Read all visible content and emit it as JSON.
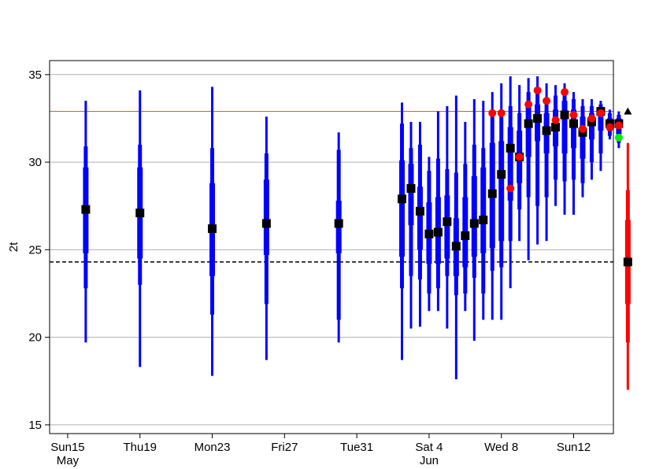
{
  "chart_data": {
    "type": "boxplot",
    "ylabel": "2t",
    "ylim": [
      14.5,
      35.8
    ],
    "y_ticks": [
      15,
      20,
      25,
      30,
      35
    ],
    "x_ticks": [
      {
        "x": 0,
        "label": "Sun15",
        "sublabel": "May",
        "color": "#ff0000"
      },
      {
        "x": 4,
        "label": "Thu19",
        "sublabel": "",
        "color": "#000000"
      },
      {
        "x": 8,
        "label": "Mon23",
        "sublabel": "",
        "color": "#000000"
      },
      {
        "x": 12,
        "label": "Fri27",
        "sublabel": "",
        "color": "#000000"
      },
      {
        "x": 16,
        "label": "Tue31",
        "sublabel": "",
        "color": "#000000"
      },
      {
        "x": 20,
        "label": "Sat 4",
        "sublabel": "Jun",
        "color": "#000000"
      },
      {
        "x": 24,
        "label": "Wed 8",
        "sublabel": "",
        "color": "#000000"
      },
      {
        "x": 28,
        "label": "Sun12",
        "sublabel": "",
        "color": "#ff0000"
      }
    ],
    "xlim": [
      -1,
      30.2
    ],
    "grid": true,
    "reference_lines": [
      {
        "y": 32.9,
        "color": "#ff4444",
        "style": "solid"
      },
      {
        "y": 24.3,
        "color": "#000000",
        "style": "dashed"
      }
    ],
    "boxes": [
      {
        "x": 1.0,
        "min": 19.7,
        "p10": 22.8,
        "p25": 24.8,
        "median": 27.3,
        "p75": 29.7,
        "p90": 30.9,
        "max": 33.5
      },
      {
        "x": 4.0,
        "min": 18.3,
        "p10": 23.0,
        "p25": 24.5,
        "median": 27.1,
        "p75": 29.7,
        "p90": 31.0,
        "max": 34.1
      },
      {
        "x": 8.0,
        "min": 17.8,
        "p10": 21.3,
        "p25": 23.5,
        "median": 26.2,
        "p75": 28.8,
        "p90": 30.8,
        "max": 34.3
      },
      {
        "x": 11.0,
        "min": 18.7,
        "p10": 21.9,
        "p25": 24.7,
        "median": 26.5,
        "p75": 29.0,
        "p90": 30.5,
        "max": 32.6
      },
      {
        "x": 15.0,
        "min": 19.7,
        "p10": 21.0,
        "p25": 24.8,
        "median": 26.5,
        "p75": 27.8,
        "p90": 30.7,
        "max": 31.7
      },
      {
        "x": 18.5,
        "min": 18.7,
        "p10": 22.8,
        "p25": 24.6,
        "median": 27.9,
        "p75": 30.1,
        "p90": 32.2,
        "max": 33.4
      },
      {
        "x": 19.0,
        "min": 20.5,
        "p10": 23.5,
        "p25": 26.4,
        "median": 28.5,
        "p75": 29.9,
        "p90": 30.8,
        "max": 32.3
      },
      {
        "x": 19.5,
        "min": 20.6,
        "p10": 23.3,
        "p25": 25.0,
        "median": 27.2,
        "p75": 28.6,
        "p90": 31.0,
        "max": 32.3
      },
      {
        "x": 20.0,
        "min": 21.5,
        "p10": 22.5,
        "p25": 24.2,
        "median": 25.9,
        "p75": 27.7,
        "p90": 29.5,
        "max": 30.3
      },
      {
        "x": 20.5,
        "min": 21.5,
        "p10": 22.8,
        "p25": 24.2,
        "median": 26.0,
        "p75": 28.0,
        "p90": 30.2,
        "max": 32.9
      },
      {
        "x": 21.0,
        "min": 20.5,
        "p10": 23.5,
        "p25": 24.5,
        "median": 26.6,
        "p75": 28.1,
        "p90": 29.6,
        "max": 33.2
      },
      {
        "x": 21.5,
        "min": 17.6,
        "p10": 22.4,
        "p25": 23.5,
        "median": 25.2,
        "p75": 26.8,
        "p90": 29.4,
        "max": 33.8
      },
      {
        "x": 22.0,
        "min": 21.5,
        "p10": 22.5,
        "p25": 24.0,
        "median": 25.8,
        "p75": 28.0,
        "p90": 29.9,
        "max": 32.3
      },
      {
        "x": 22.5,
        "min": 19.8,
        "p10": 23.4,
        "p25": 24.6,
        "median": 26.5,
        "p75": 29.2,
        "p90": 31.0,
        "max": 33.6
      },
      {
        "x": 23.0,
        "min": 21.0,
        "p10": 22.5,
        "p25": 24.8,
        "median": 26.7,
        "p75": 29.7,
        "p90": 30.8,
        "max": 33.5
      },
      {
        "x": 23.5,
        "min": 21.0,
        "p10": 23.8,
        "p25": 25.1,
        "median": 28.2,
        "p75": 31.1,
        "p90": 32.6,
        "max": 34.0
      },
      {
        "x": 24.0,
        "min": 21.0,
        "p10": 24.0,
        "p25": 25.5,
        "median": 29.3,
        "p75": 31.2,
        "p90": 33.0,
        "max": 34.5
      },
      {
        "x": 24.5,
        "min": 22.8,
        "p10": 25.5,
        "p25": 27.8,
        "median": 30.8,
        "p75": 32.0,
        "p90": 33.2,
        "max": 34.9
      },
      {
        "x": 25.0,
        "min": 25.5,
        "p10": 27.3,
        "p25": 28.8,
        "median": 30.3,
        "p75": 31.8,
        "p90": 32.8,
        "max": 34.4
      },
      {
        "x": 25.5,
        "min": 24.4,
        "p10": 28.0,
        "p25": 30.3,
        "median": 32.2,
        "p75": 33.3,
        "p90": 34.0,
        "max": 34.8
      },
      {
        "x": 26.0,
        "min": 25.3,
        "p10": 27.5,
        "p25": 31.2,
        "median": 32.5,
        "p75": 33.3,
        "p90": 34.0,
        "max": 34.9
      },
      {
        "x": 26.5,
        "min": 25.5,
        "p10": 28.0,
        "p25": 30.5,
        "median": 31.8,
        "p75": 32.8,
        "p90": 33.6,
        "max": 34.5
      },
      {
        "x": 27.0,
        "min": 27.5,
        "p10": 29.0,
        "p25": 30.9,
        "median": 32.0,
        "p75": 33.0,
        "p90": 33.8,
        "max": 34.4
      },
      {
        "x": 27.5,
        "min": 27.0,
        "p10": 28.9,
        "p25": 30.5,
        "median": 32.7,
        "p75": 33.5,
        "p90": 34.0,
        "max": 34.5
      },
      {
        "x": 28.0,
        "min": 27.0,
        "p10": 29.0,
        "p25": 30.8,
        "median": 32.2,
        "p75": 33.0,
        "p90": 33.6,
        "max": 34.0
      },
      {
        "x": 28.5,
        "min": 28.0,
        "p10": 28.8,
        "p25": 30.2,
        "median": 31.7,
        "p75": 32.6,
        "p90": 33.2,
        "max": 33.6
      },
      {
        "x": 29.0,
        "min": 29.0,
        "p10": 30.0,
        "p25": 31.3,
        "median": 32.3,
        "p75": 32.8,
        "p90": 33.2,
        "max": 33.6
      },
      {
        "x": 29.5,
        "min": 29.5,
        "p10": 30.5,
        "p25": 31.8,
        "median": 32.9,
        "p75": 33.1,
        "p90": 33.3,
        "max": 33.5
      },
      {
        "x": 30.0,
        "min": 31.3,
        "p10": 31.5,
        "p25": 31.8,
        "median": 32.2,
        "p75": 32.5,
        "p90": 32.8,
        "max": 33.0
      },
      {
        "x": 30.5,
        "min": 30.8,
        "p10": 31.1,
        "p25": 31.6,
        "median": 32.2,
        "p75": 32.5,
        "p90": 32.7,
        "max": 32.9
      }
    ],
    "climate_box": {
      "x": 31.0,
      "min": 17.0,
      "p10": 19.7,
      "p25": 21.9,
      "median": 24.3,
      "p75": 26.7,
      "p90": 28.4,
      "max": 31.1,
      "color": "#ff0000"
    },
    "observations": [
      {
        "x": 23.5,
        "y": 32.8
      },
      {
        "x": 24.0,
        "y": 32.8
      },
      {
        "x": 24.5,
        "y": 28.5
      },
      {
        "x": 25.0,
        "y": 30.3
      },
      {
        "x": 25.5,
        "y": 33.3
      },
      {
        "x": 26.0,
        "y": 34.1
      },
      {
        "x": 26.5,
        "y": 33.5
      },
      {
        "x": 27.0,
        "y": 32.4
      },
      {
        "x": 27.5,
        "y": 34.0
      },
      {
        "x": 28.0,
        "y": 32.7
      },
      {
        "x": 28.5,
        "y": 31.9
      },
      {
        "x": 29.0,
        "y": 32.5
      },
      {
        "x": 29.5,
        "y": 32.8
      },
      {
        "x": 30.0,
        "y": 32.0
      },
      {
        "x": 30.5,
        "y": 32.1
      }
    ],
    "green_point": {
      "x": 30.5,
      "y": 31.4
    },
    "triangle_point": {
      "x": 31.0,
      "y": 32.9
    },
    "colors": {
      "box": "#0000ff",
      "median": "#000000",
      "observation": "#ff0000",
      "green": "#00ee00",
      "grid": "#b0b0b0"
    }
  }
}
